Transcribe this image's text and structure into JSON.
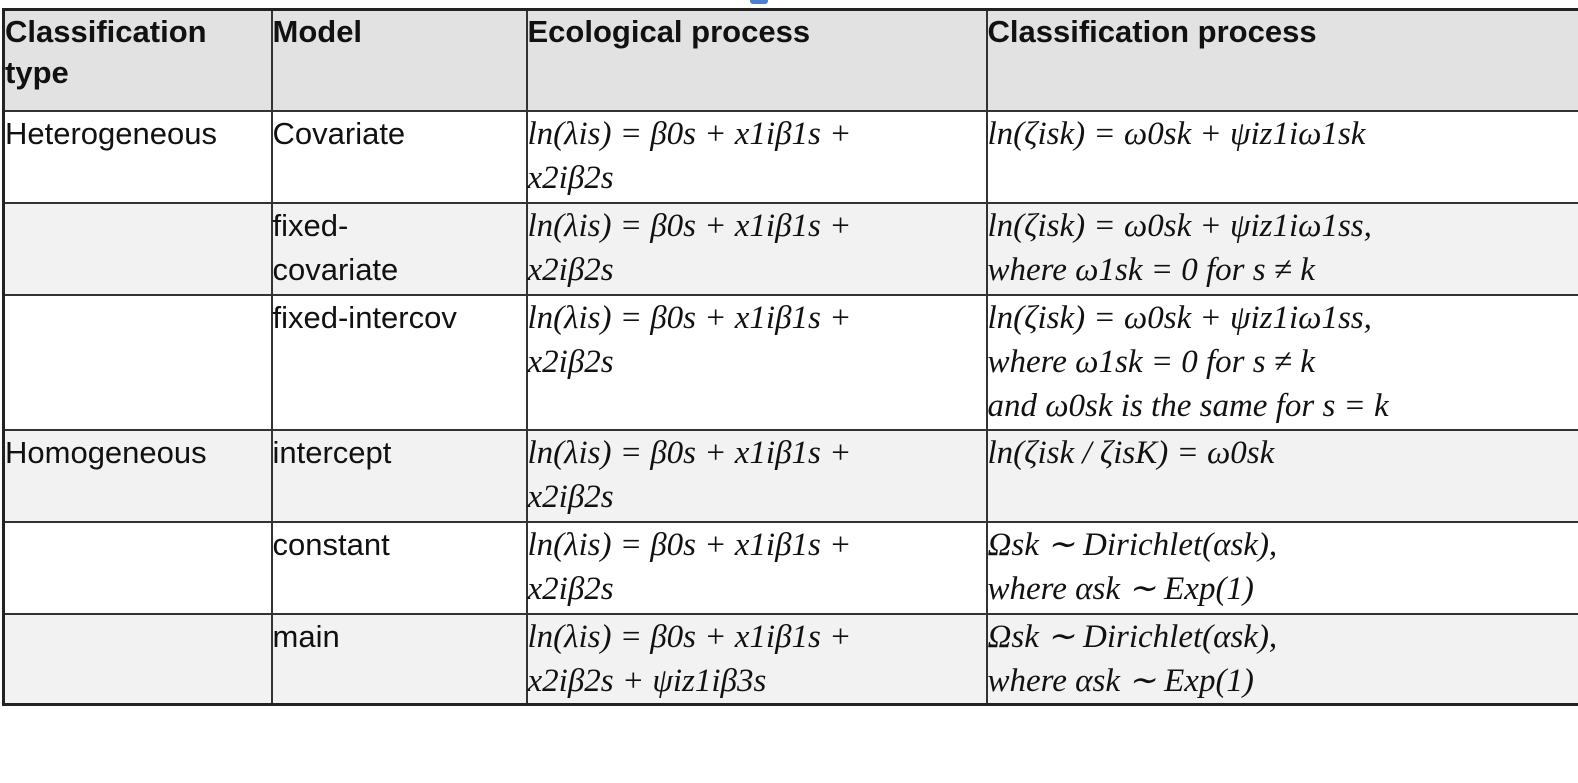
{
  "table": {
    "headers": [
      "Classification type",
      "Model",
      "Ecological process",
      "Classification process"
    ],
    "rows": [
      {
        "type": "Heterogeneous",
        "model": "Covariate",
        "eco": [
          "ln(λis) = β0s + x1iβ1s +",
          "x2iβ2s"
        ],
        "cls": [
          "ln(ζisk) = ω0sk + ψiz1iω1sk"
        ]
      },
      {
        "type": "",
        "model": [
          "fixed-",
          "covariate"
        ],
        "eco": [
          "ln(λis) = β0s + x1iβ1s +",
          "x2iβ2s"
        ],
        "cls": [
          "ln(ζisk) = ω0sk + ψiz1iω1ss,",
          "where ω1sk = 0 for s ≠ k"
        ]
      },
      {
        "type": "",
        "model": "fixed-intercov",
        "eco": [
          "ln(λis) = β0s + x1iβ1s +",
          "x2iβ2s"
        ],
        "cls": [
          "ln(ζisk) = ω0sk + ψiz1iω1ss,",
          "where ω1sk = 0 for s ≠ k",
          "and ω0sk is the same for s = k"
        ]
      },
      {
        "type": "Homogeneous",
        "model": "intercept",
        "eco": [
          "ln(λis) = β0s + x1iβ1s +",
          "x2iβ2s"
        ],
        "cls": [
          "ln(ζisk / ζisK) = ω0sk"
        ]
      },
      {
        "type": "",
        "model": "constant",
        "eco": [
          "ln(λis) = β0s + x1iβ1s +",
          "x2iβ2s"
        ],
        "cls": [
          "Ωsk ∼ Dirichlet(αsk),",
          "where αsk ∼ Exp(1)"
        ]
      },
      {
        "type": "",
        "model": "main",
        "eco": [
          "ln(λis) = β0s + x1iβ1s +",
          "x2iβ2s + ψiz1iβ3s"
        ],
        "cls": [
          "Ωsk ∼ Dirichlet(αsk),",
          "where αsk ∼ Exp(1)"
        ]
      }
    ]
  }
}
